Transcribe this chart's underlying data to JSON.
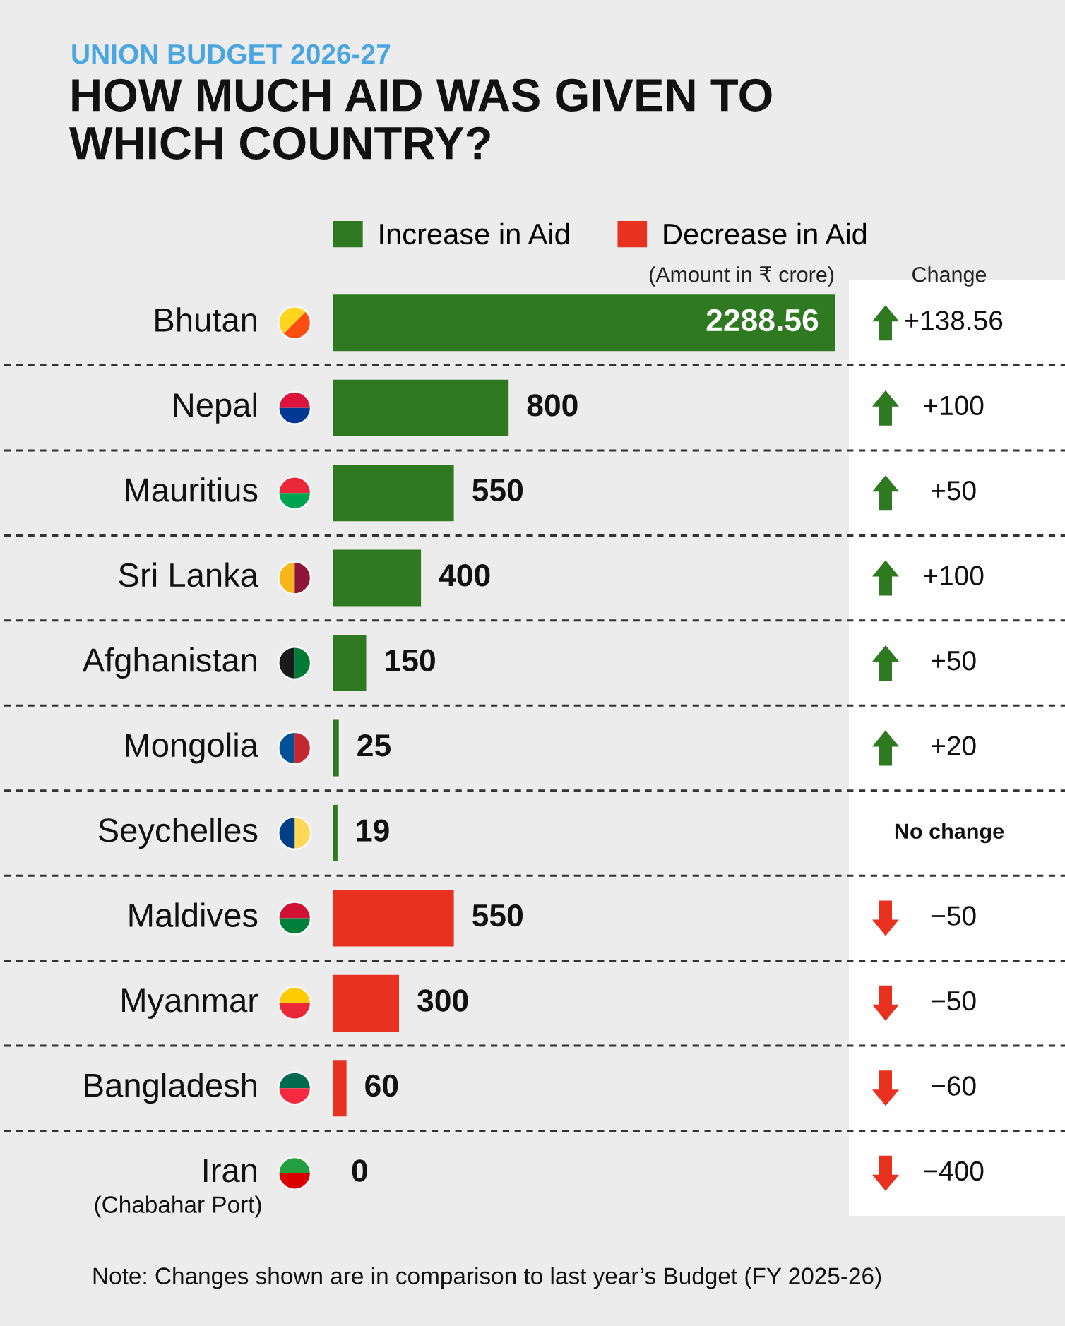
{
  "chart_data": [
    {
      "type": "bar",
      "orientation": "horizontal",
      "subtitle": "UNION BUDGET 2026-27",
      "title": "HOW MUCH AID WAS GIVEN TO\nWHICH COUNTRY?",
      "categories": [
        "Bhutan",
        "Nepal",
        "Mauritius",
        "Sri Lanka",
        "Afghanistan",
        "Mongolia",
        "Seychelles",
        "Maldives",
        "Myanmar",
        "Bangladesh",
        "Iran\n(Chabahar Port)"
      ],
      "series": [
        {
          "name": "Increase in Aid",
          "color": "#2f7a20",
          "values": [
            2288.56,
            800,
            550,
            400,
            150,
            25,
            19,
            null,
            null,
            null,
            null
          ]
        },
        {
          "name": "Decrease in Aid",
          "color": "#e8321f",
          "values": [
            null,
            null,
            null,
            null,
            null,
            null,
            null,
            550,
            300,
            60,
            0
          ]
        }
      ],
      "xlim": [
        0,
        2288.56
      ],
      "data_labels": true,
      "legend": "top",
      "grid": "y",
      "tick_labels": "y",
      "annotations": [
        "(Amount in ₹ crore)",
        "Note: Changes shown are in comparison to last year’s Budget (FY 2025-26)"
      ]
    },
    {
      "type": "other",
      "title": "Change",
      "annotations": [
        "+138.56",
        "+100",
        "+50",
        "+100",
        "+50",
        "+20",
        "No change",
        "−50",
        "−50",
        "−60",
        "−400"
      ],
      "colors": [
        "#2f7a20",
        "#2f7a20",
        "#2f7a20",
        "#2f7a20",
        "#2f7a20",
        "#2f7a20",
        null,
        "#e8321f",
        "#e8321f",
        "#e8321f",
        "#e8321f"
      ]
    }
  ]
}
